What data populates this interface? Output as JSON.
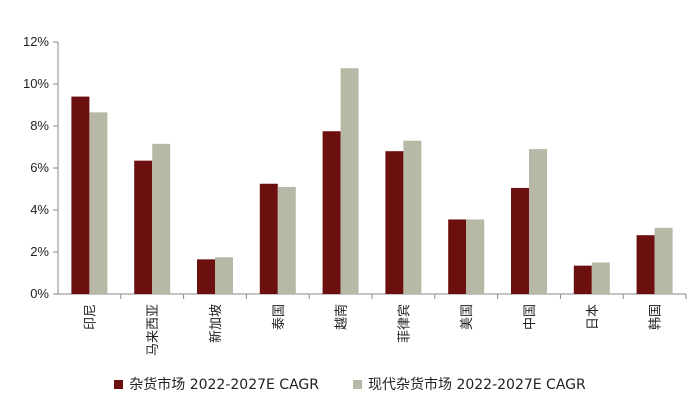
{
  "chart_data": {
    "type": "bar",
    "categories": [
      "印尼",
      "马来西亚",
      "新加坡",
      "泰国",
      "越南",
      "菲律宾",
      "美国",
      "中国",
      "日本",
      "韩国"
    ],
    "series": [
      {
        "name": "杂货市场 2022-2027E CAGR",
        "color": "#6b0f0f",
        "values": [
          9.4,
          6.35,
          1.65,
          5.25,
          7.75,
          6.8,
          3.55,
          5.05,
          1.35,
          2.8
        ]
      },
      {
        "name": "现代杂货市场 2022-2027E CAGR",
        "color": "#b7b8a6",
        "values": [
          8.65,
          7.15,
          1.75,
          5.1,
          10.75,
          7.3,
          3.55,
          6.9,
          1.5,
          3.15
        ]
      }
    ],
    "yticks": [
      "0%",
      "2%",
      "4%",
      "6%",
      "8%",
      "10%",
      "12%"
    ],
    "ylim": [
      0,
      12
    ],
    "grid": false,
    "legend_position": "bottom",
    "title": "",
    "xlabel": "",
    "ylabel": ""
  }
}
